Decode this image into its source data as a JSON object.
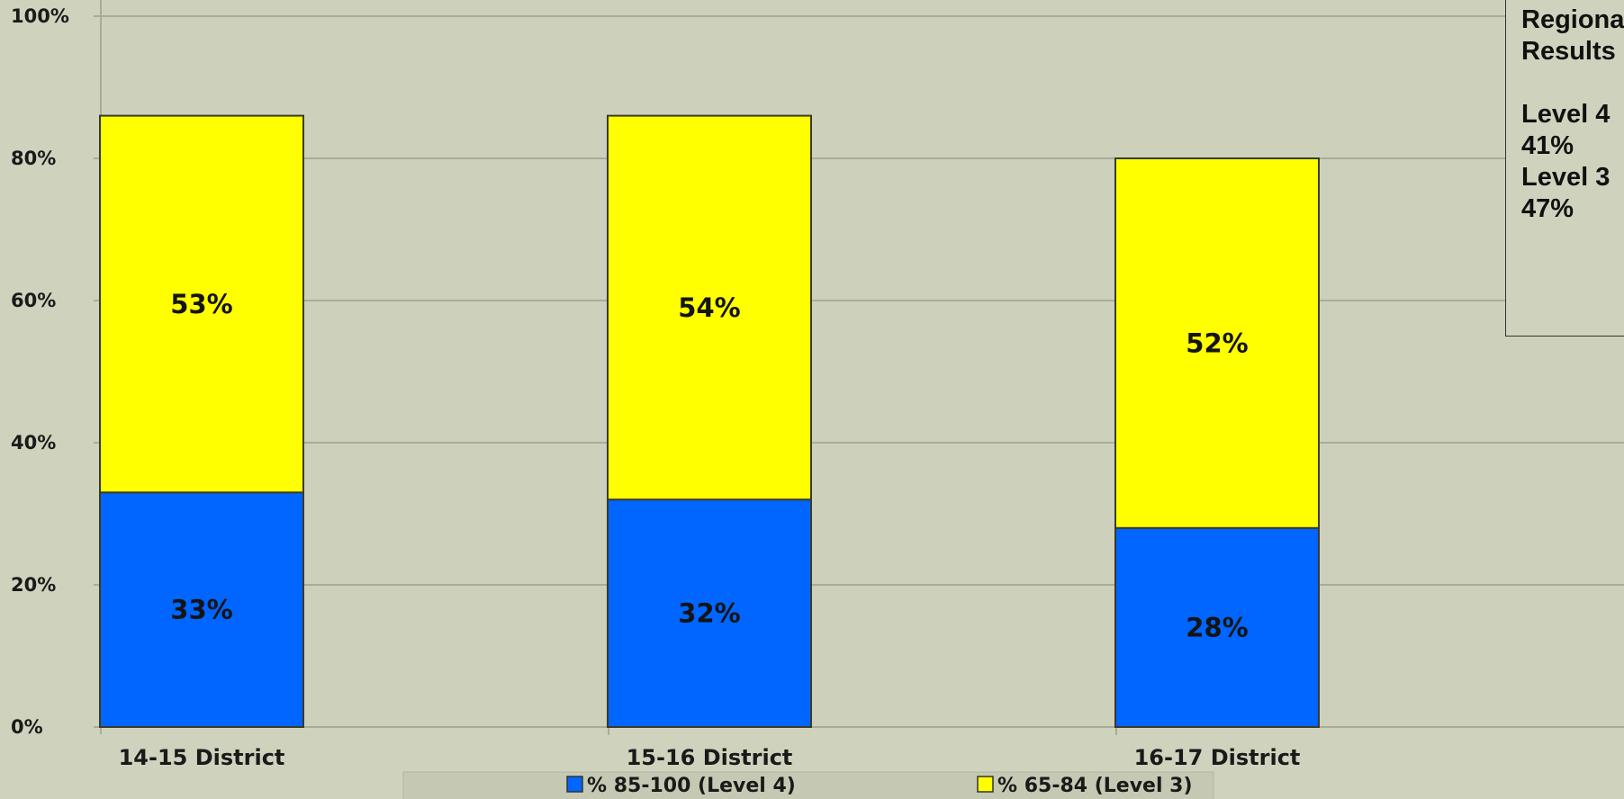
{
  "chart_data": {
    "type": "bar",
    "stacked": true,
    "categories": [
      "14-15 District",
      "15-16 District",
      "16-17 District"
    ],
    "series": [
      {
        "name": "% 85-100 (Level 4)",
        "values": [
          33,
          32,
          28
        ],
        "labels": [
          "33%",
          "32%",
          "28%"
        ],
        "color": "#0066ff"
      },
      {
        "name": "% 65-84 (Level 3)",
        "values": [
          53,
          54,
          52
        ],
        "labels": [
          "53%",
          "54%",
          "52%"
        ],
        "color": "#ffff00"
      }
    ],
    "ylim": [
      0,
      100
    ],
    "yticks": [
      "0%",
      "20%",
      "40%",
      "60%",
      "80%",
      "100%"
    ],
    "grid": true,
    "legend_position": "bottom",
    "xlabel": "",
    "ylabel": ""
  },
  "note": {
    "lines": [
      "Regional",
      "Results",
      "",
      "Level 4",
      "41%",
      "Level 3",
      "47%"
    ]
  }
}
